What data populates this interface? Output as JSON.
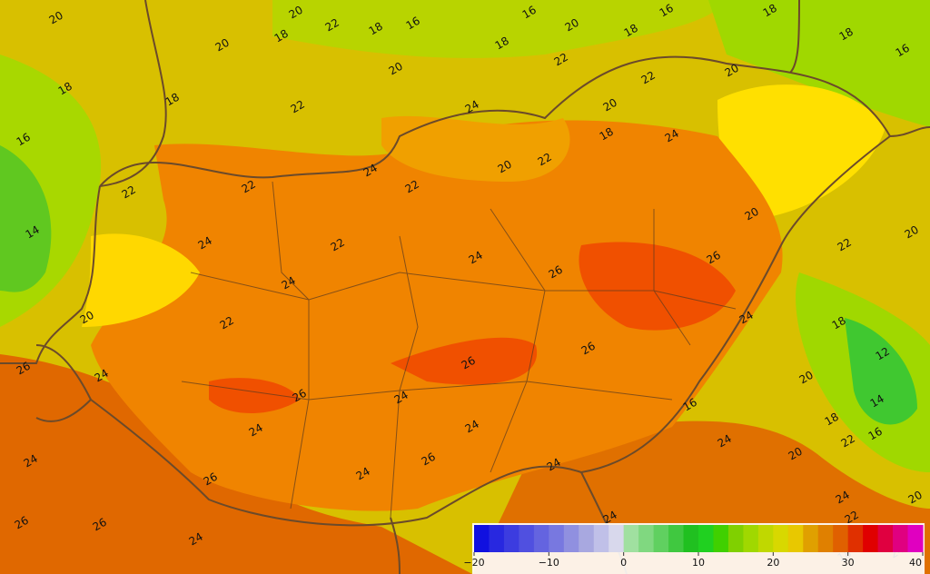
{
  "contour_labels": [
    "20",
    "20",
    "22",
    "18",
    "16",
    "16",
    "20",
    "16",
    "18",
    "20",
    "18",
    "18",
    "18",
    "18",
    "16",
    "22",
    "20",
    "20",
    "18",
    "18",
    "22",
    "24",
    "22",
    "20",
    "16",
    "18",
    "24",
    "20",
    "22",
    "24",
    "22",
    "22",
    "22",
    "20",
    "14",
    "24",
    "22",
    "22",
    "20",
    "24",
    "26",
    "26",
    "24",
    "20",
    "22",
    "24",
    "18",
    "26",
    "24",
    "26",
    "26",
    "12",
    "20",
    "26",
    "24",
    "16",
    "14",
    "18",
    "24",
    "24",
    "16",
    "24",
    "20",
    "22",
    "24",
    "26",
    "24",
    "26",
    "24",
    "24",
    "20",
    "26",
    "26",
    "24",
    "24",
    "22",
    "18",
    "24"
  ],
  "colorbar": {
    "ticks": [
      {
        "value": -20,
        "label": "−20"
      },
      {
        "value": -10,
        "label": "−10"
      },
      0,
      10,
      20,
      30,
      40
    ],
    "lim": [
      -20,
      40
    ]
  }
}
